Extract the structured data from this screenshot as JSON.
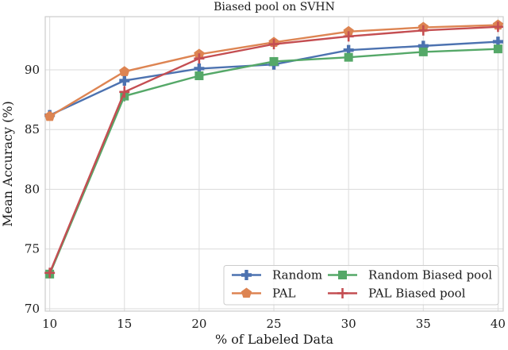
{
  "chart_data": {
    "type": "line",
    "title": "Biased pool on SVHN",
    "xlabel": "% of Labeled Data",
    "ylabel": "Mean Accuracy (%)",
    "x": [
      10,
      15,
      20,
      25,
      30,
      35,
      40
    ],
    "xticks": [
      10,
      15,
      20,
      25,
      30,
      35,
      40
    ],
    "yticks": [
      70,
      75,
      80,
      85,
      90
    ],
    "xlim": [
      9.7,
      40.35
    ],
    "ylim": [
      69.8,
      94.45
    ],
    "grid": true,
    "series": [
      {
        "name": "Random",
        "color": "#4C72B0",
        "marker": "plus_filled",
        "values": [
          86.2,
          89.1,
          90.1,
          90.45,
          91.65,
          92.0,
          92.35
        ],
        "yerr": [
          0.2,
          0.45,
          0.25,
          0.3,
          0.4,
          0.3,
          0.4
        ]
      },
      {
        "name": "PAL",
        "color": "#DD8452",
        "marker": "pentagon",
        "values": [
          86.1,
          89.85,
          91.3,
          92.3,
          93.2,
          93.55,
          93.75
        ],
        "yerr": [
          0.2,
          0.3,
          0.2,
          0.2,
          0.25,
          0.2,
          0.2
        ]
      },
      {
        "name": "Random Biased pool",
        "color": "#55A868",
        "marker": "square",
        "values": [
          72.9,
          87.8,
          89.5,
          90.7,
          91.05,
          91.5,
          91.75
        ],
        "yerr": [
          0.3,
          0.45,
          0.3,
          0.3,
          0.3,
          0.25,
          0.3
        ]
      },
      {
        "name": "PAL Biased pool",
        "color": "#C44E52",
        "marker": "plus",
        "values": [
          73.0,
          88.15,
          90.95,
          92.15,
          92.8,
          93.3,
          93.6
        ],
        "yerr": [
          0.35,
          0.5,
          0.35,
          0.3,
          0.3,
          0.3,
          0.3
        ]
      }
    ],
    "legend": {
      "location": "lower right",
      "columns": 2,
      "labels": [
        "Random",
        "PAL",
        "Random Biased pool",
        "PAL Biased pool"
      ]
    },
    "colors": {
      "grid": "#DBDBDB",
      "spine": "#CCCCCC",
      "text": "#1A1A1A",
      "background": "#FFFFFF",
      "legend_border": "#CCCCCC",
      "legend_fill": "#FFFFFF"
    }
  }
}
